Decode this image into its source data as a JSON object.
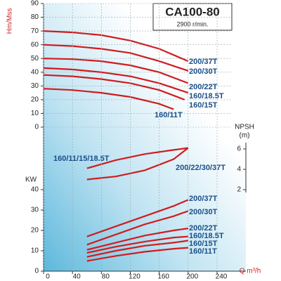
{
  "chart_data": [
    {
      "type": "line",
      "title": "CA100-80",
      "subtitle": "2900 r/min.",
      "ylabel": "Hm/Mss",
      "color": "#d01c1f",
      "xlim": [
        0,
        240
      ],
      "ylim": [
        0,
        90
      ],
      "yticks": [
        0,
        10,
        20,
        30,
        40,
        50,
        60,
        70,
        80,
        90
      ],
      "grid": true,
      "series": [
        {
          "name": "200/37T",
          "x": [
            0,
            40,
            80,
            120,
            160,
            200
          ],
          "values": [
            70,
            69,
            67,
            63,
            57,
            48
          ]
        },
        {
          "name": "200/30T",
          "x": [
            0,
            40,
            80,
            120,
            160,
            200
          ],
          "values": [
            60,
            59,
            57,
            54,
            48,
            41
          ]
        },
        {
          "name": "200/22T",
          "x": [
            0,
            40,
            80,
            120,
            160,
            200
          ],
          "values": [
            50,
            49.5,
            48,
            45,
            40,
            32
          ]
        },
        {
          "name": "160/18.5T",
          "x": [
            0,
            40,
            80,
            120,
            160,
            200
          ],
          "values": [
            43,
            42,
            40,
            37,
            32,
            25
          ]
        },
        {
          "name": "160/15T",
          "x": [
            0,
            40,
            80,
            120,
            160,
            195
          ],
          "values": [
            38,
            37,
            35,
            32,
            27,
            20
          ]
        },
        {
          "name": "160/11T",
          "x": [
            0,
            40,
            80,
            120,
            160,
            180
          ],
          "values": [
            28,
            27,
            25,
            22,
            17,
            13
          ]
        }
      ]
    },
    {
      "type": "line",
      "ylabel": "NPSH",
      "ylabel_unit": "(m)",
      "color": "#d01c1f",
      "xlim": [
        0,
        240
      ],
      "ylim": [
        2,
        6
      ],
      "yticks": [
        2,
        4,
        6
      ],
      "series": [
        {
          "name": "160/11/15/18.5T",
          "x": [
            60,
            100,
            140,
            180,
            200
          ],
          "values": [
            4.1,
            4.9,
            5.5,
            5.9,
            6.1
          ]
        },
        {
          "name": "200/22/30/37T",
          "x": [
            60,
            100,
            140,
            180,
            200
          ],
          "values": [
            3.0,
            3.3,
            3.9,
            5.0,
            6.1
          ]
        }
      ]
    },
    {
      "type": "line",
      "ylabel": "KW",
      "xlabel": "Q m³/h",
      "color": "#d01c1f",
      "xlim": [
        0,
        240
      ],
      "xticks": [
        0,
        40,
        80,
        120,
        160,
        200,
        240
      ],
      "ylim": [
        0,
        40
      ],
      "yticks": [
        0,
        10,
        20,
        30,
        40
      ],
      "series": [
        {
          "name": "200/37T",
          "x": [
            60,
            100,
            140,
            180,
            200
          ],
          "values": [
            17,
            22,
            27,
            32,
            35
          ]
        },
        {
          "name": "200/30T",
          "x": [
            60,
            100,
            140,
            180,
            200
          ],
          "values": [
            13,
            18,
            23,
            27,
            29.5
          ]
        },
        {
          "name": "200/22T",
          "x": [
            60,
            100,
            140,
            180,
            200
          ],
          "values": [
            10.5,
            14,
            17.5,
            20,
            21
          ]
        },
        {
          "name": "160/18.5T",
          "x": [
            60,
            100,
            140,
            180,
            200
          ],
          "values": [
            9,
            12,
            14.5,
            16.5,
            17
          ]
        },
        {
          "name": "160/15T",
          "x": [
            60,
            100,
            140,
            180,
            200
          ],
          "values": [
            7,
            10,
            12.5,
            14,
            15
          ]
        },
        {
          "name": "160/11T",
          "x": [
            60,
            100,
            140,
            180,
            200
          ],
          "values": [
            5,
            7.5,
            9.5,
            11,
            11.5
          ]
        }
      ]
    }
  ]
}
